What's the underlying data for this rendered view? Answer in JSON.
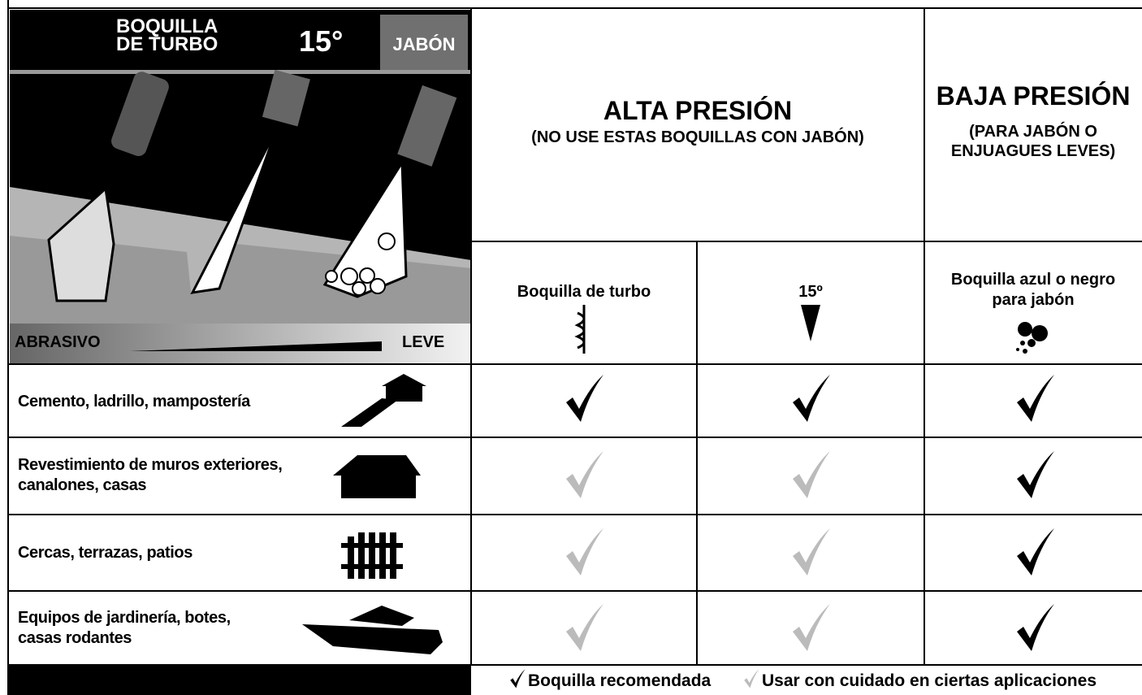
{
  "panel": {
    "title_lines": [
      "BOQUILLA",
      "DE TURBO"
    ],
    "angle": "15°",
    "soap": "JABÓN",
    "scale_left": "ABRASIVO",
    "scale_right": "LEVE"
  },
  "header": {
    "high": {
      "title": "ALTA PRESIÓN",
      "note": "(NO USE ESTAS BOQUILLAS CON JABÓN)"
    },
    "low": {
      "title": "BAJA PRESIÓN",
      "note_lines": [
        "(PARA JABÓN O",
        "ENJUAGUES LEVES)"
      ]
    }
  },
  "nozzles": [
    {
      "label_lines": [
        "Boquilla de turbo"
      ]
    },
    {
      "label_lines": [
        "15º"
      ]
    },
    {
      "label_lines": [
        "Boquilla azul o negro",
        "para jabón"
      ]
    }
  ],
  "rows": [
    {
      "label_lines": [
        "Cemento, ladrillo, mampostería"
      ]
    },
    {
      "label_lines": [
        "Revestimiento de muros exteriores,",
        "canalones, casas"
      ]
    },
    {
      "label_lines": [
        "Cercas, terrazas, patios"
      ]
    },
    {
      "label_lines": [
        "Equipos de jardinería, botes,",
        "casas rodantes"
      ]
    }
  ],
  "legend": {
    "recommended": "Boquilla recomendada",
    "caution": "Usar con cuidado en ciertas aplicaciones"
  }
}
